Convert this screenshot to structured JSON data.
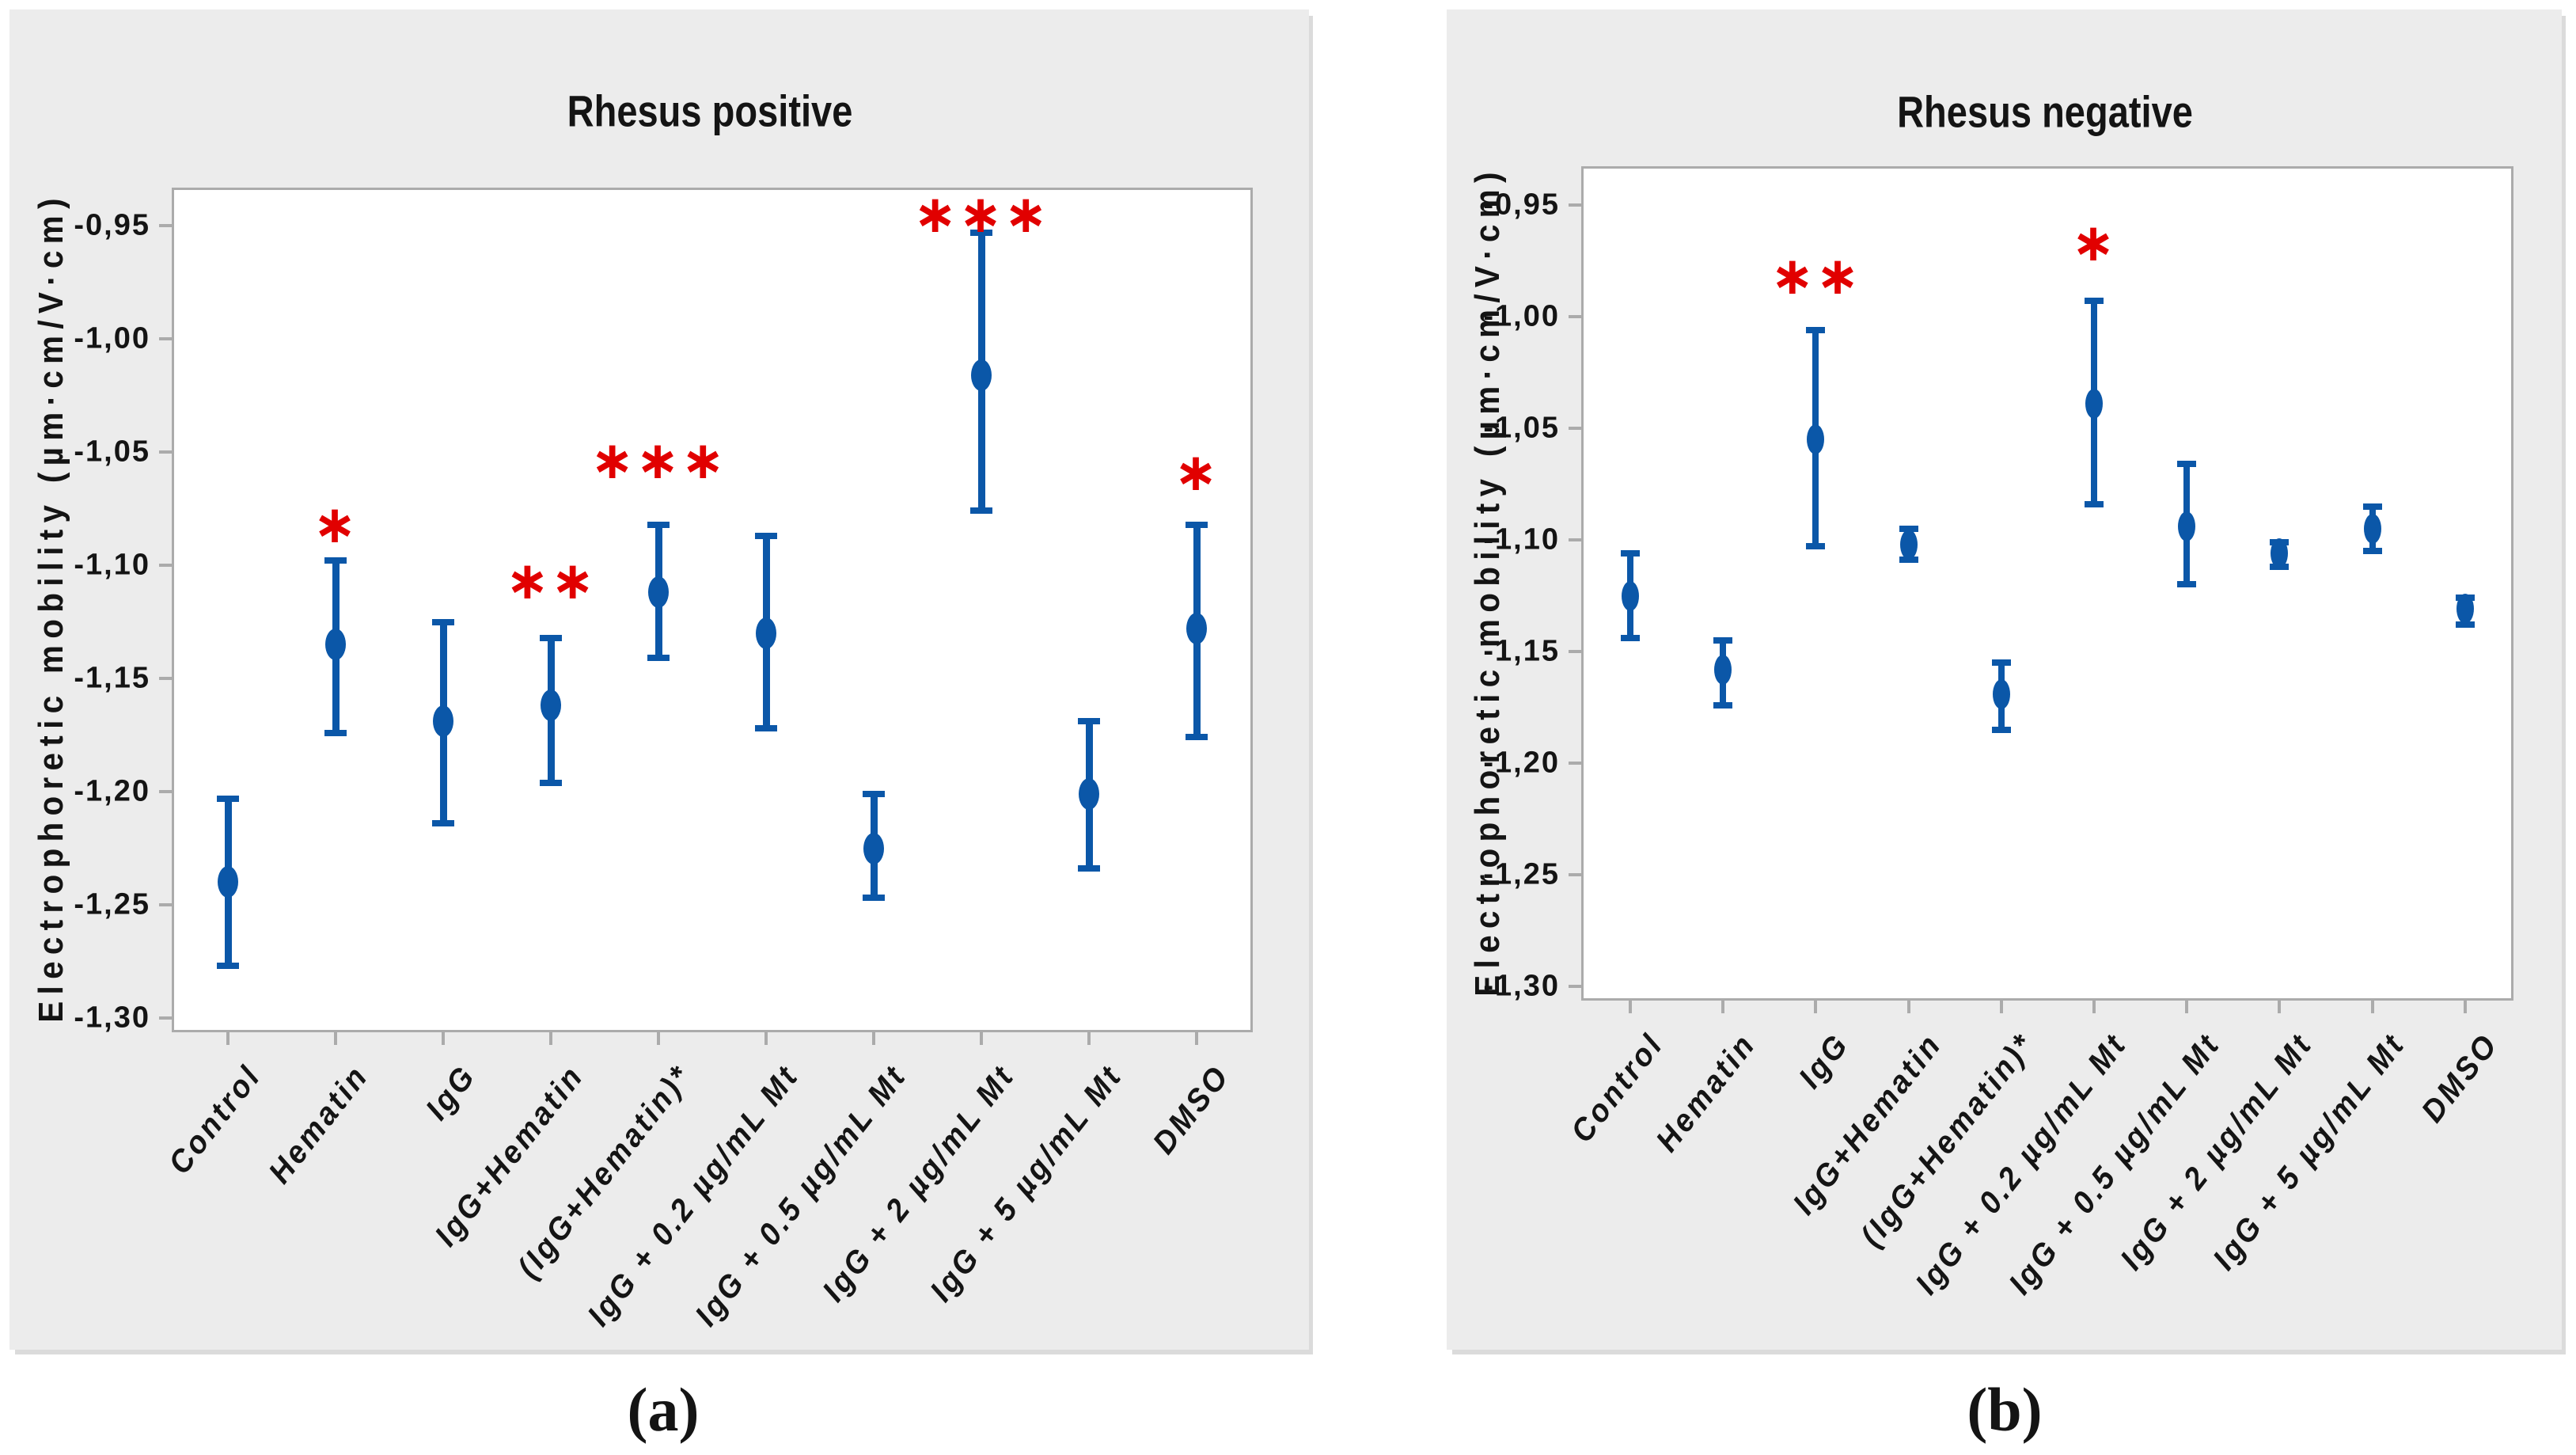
{
  "figure": {
    "panel_a_label": "(a)",
    "panel_b_label": "(b)"
  },
  "colors": {
    "point_blue": "#0B57A8",
    "star_red": "#E10000",
    "panel_bg": "#ECECEC",
    "plot_bg": "#FFFFFF",
    "frame_gray": "#ABABAB",
    "text": "#141414"
  },
  "chart_data": [
    {
      "id": "rhesus-positive",
      "type": "scatter",
      "subtype": "interval-plot-mean-95ci",
      "title": "Rhesus positive",
      "ylabel": "Electrophoretic mobility (µm·cm/V·cm)",
      "xlabel": "",
      "ylim": [
        -1.3,
        -0.95
      ],
      "grid": false,
      "legend": null,
      "decimal_separator": ",",
      "yticks": [
        {
          "value": -0.95,
          "label": "-0,95"
        },
        {
          "value": -1.0,
          "label": "-1,00"
        },
        {
          "value": -1.05,
          "label": "-1,05"
        },
        {
          "value": -1.1,
          "label": "-1,10"
        },
        {
          "value": -1.15,
          "label": "-1,15"
        },
        {
          "value": -1.2,
          "label": "-1,20"
        },
        {
          "value": -1.25,
          "label": "-1,25"
        },
        {
          "value": -1.3,
          "label": "-1,30"
        }
      ],
      "points": [
        {
          "category": "Control",
          "mean": -1.24,
          "ci_low": -1.277,
          "ci_high": -1.203,
          "sig": "",
          "sig_y": null
        },
        {
          "category": "Hematin",
          "mean": -1.135,
          "ci_low": -1.174,
          "ci_high": -1.098,
          "sig": "*",
          "sig_y": -1.082
        },
        {
          "category": "IgG",
          "mean": -1.169,
          "ci_low": -1.214,
          "ci_high": -1.125,
          "sig": "",
          "sig_y": null
        },
        {
          "category": "IgG+Hematin",
          "mean": -1.162,
          "ci_low": -1.196,
          "ci_high": -1.132,
          "sig": "**",
          "sig_y": -1.107
        },
        {
          "category": "(IgG+Hematin)*",
          "mean": -1.112,
          "ci_low": -1.141,
          "ci_high": -1.082,
          "sig": "***",
          "sig_y": -1.054
        },
        {
          "category": "IgG + 0.2 µg/mL Mt",
          "mean": -1.13,
          "ci_low": -1.172,
          "ci_high": -1.087,
          "sig": "",
          "sig_y": null
        },
        {
          "category": "IgG + 0.5 µg/mL Mt",
          "mean": -1.225,
          "ci_low": -1.247,
          "ci_high": -1.201,
          "sig": "",
          "sig_y": null
        },
        {
          "category": "IgG + 2 µg/mL Mt",
          "mean": -1.016,
          "ci_low": -1.076,
          "ci_high": -0.953,
          "sig": "***",
          "sig_y": -0.945
        },
        {
          "category": "IgG + 5 µg/mL Mt",
          "mean": -1.201,
          "ci_low": -1.234,
          "ci_high": -1.169,
          "sig": "",
          "sig_y": null
        },
        {
          "category": "DMSO",
          "mean": -1.128,
          "ci_low": -1.176,
          "ci_high": -1.082,
          "sig": "*",
          "sig_y": -1.059
        }
      ]
    },
    {
      "id": "rhesus-negative",
      "type": "scatter",
      "subtype": "interval-plot-mean-95ci",
      "title": "Rhesus negative",
      "ylabel": "Electrophoretic mobility (µm·cm/V·cm)",
      "xlabel": "",
      "ylim": [
        -1.3,
        -0.95
      ],
      "grid": false,
      "legend": null,
      "decimal_separator": ",",
      "yticks": [
        {
          "value": -0.95,
          "label": "-0,95"
        },
        {
          "value": -1.0,
          "label": "-1,00"
        },
        {
          "value": -1.05,
          "label": "-1,05"
        },
        {
          "value": -1.1,
          "label": "-1,10"
        },
        {
          "value": -1.15,
          "label": "-1,15"
        },
        {
          "value": -1.2,
          "label": "-1,20"
        },
        {
          "value": -1.25,
          "label": "-1,25"
        },
        {
          "value": -1.3,
          "label": "-1,30"
        }
      ],
      "points": [
        {
          "category": "Control",
          "mean": -1.125,
          "ci_low": -1.144,
          "ci_high": -1.106,
          "sig": "",
          "sig_y": null
        },
        {
          "category": "Hematin",
          "mean": -1.158,
          "ci_low": -1.174,
          "ci_high": -1.145,
          "sig": "",
          "sig_y": null
        },
        {
          "category": "IgG",
          "mean": -1.055,
          "ci_low": -1.103,
          "ci_high": -1.006,
          "sig": "**",
          "sig_y": -0.982
        },
        {
          "category": "IgG+Hematin",
          "mean": -1.102,
          "ci_low": -1.109,
          "ci_high": -1.095,
          "sig": "",
          "sig_y": null
        },
        {
          "category": "(IgG+Hematin)*",
          "mean": -1.169,
          "ci_low": -1.185,
          "ci_high": -1.155,
          "sig": "",
          "sig_y": null
        },
        {
          "category": "IgG + 0.2 µg/mL Mt",
          "mean": -1.039,
          "ci_low": -1.084,
          "ci_high": -0.993,
          "sig": "*",
          "sig_y": -0.967
        },
        {
          "category": "IgG + 0.5 µg/mL Mt",
          "mean": -1.094,
          "ci_low": -1.12,
          "ci_high": -1.066,
          "sig": "",
          "sig_y": null
        },
        {
          "category": "IgG + 2 µg/mL Mt",
          "mean": -1.106,
          "ci_low": -1.112,
          "ci_high": -1.101,
          "sig": "",
          "sig_y": null
        },
        {
          "category": "IgG + 5 µg/mL Mt",
          "mean": -1.095,
          "ci_low": -1.105,
          "ci_high": -1.085,
          "sig": "",
          "sig_y": null
        },
        {
          "category": "DMSO",
          "mean": -1.131,
          "ci_low": -1.138,
          "ci_high": -1.126,
          "sig": "",
          "sig_y": null
        }
      ]
    }
  ]
}
